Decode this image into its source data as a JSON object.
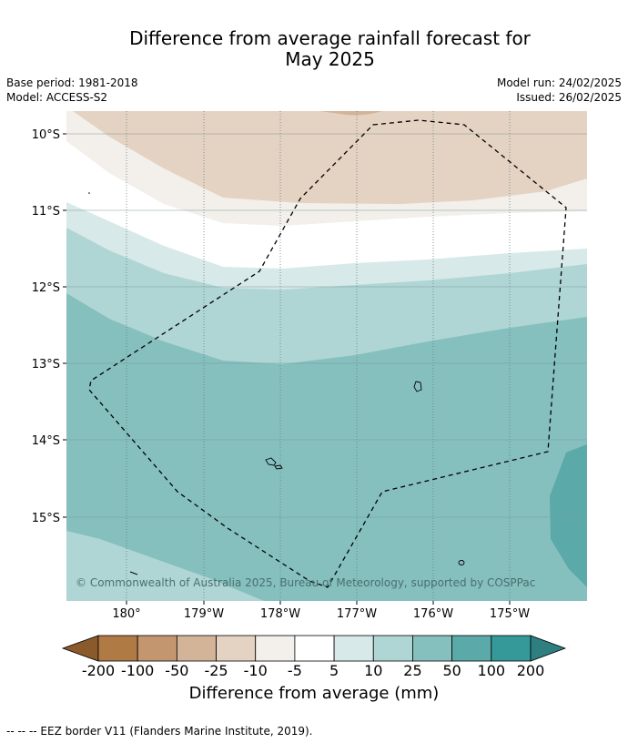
{
  "header": {
    "title_line1": "Difference from average rainfall forecast for",
    "title_line2": "May 2025",
    "base_period": "Base period: 1981-2018",
    "model": "Model: ACCESS-S2",
    "model_run": "Model run: 24/02/2025",
    "issued": "Issued: 26/02/2025"
  },
  "map": {
    "lat_labels": [
      "10°S",
      "11°S",
      "12°S",
      "13°S",
      "14°S",
      "15°S"
    ],
    "lon_labels": [
      "180°",
      "179°W",
      "178°W",
      "177°W",
      "176°W",
      "175°W"
    ],
    "copyright": "© Commonwealth of Australia 2025, Bureau of Meteorology, supported by COSPPac",
    "eez_border_style": "dashed",
    "islands": [
      "north-east islet",
      "central islands",
      "south-east islet",
      "south-west islet"
    ]
  },
  "colorbar": {
    "title": "Difference from average (mm)",
    "labels": [
      "-200",
      "-100",
      "-50",
      "-25",
      "-10",
      "-5",
      "5",
      "10",
      "25",
      "50",
      "100",
      "200"
    ],
    "colors": [
      "#8a5a2b",
      "#b07a44",
      "#c49670",
      "#d4b498",
      "#e4d3c3",
      "#f3efea",
      "#ffffff",
      "#d7e9e8",
      "#afd6d5",
      "#85c0bf",
      "#5ba9a8",
      "#35999a",
      "#2d7f80"
    ]
  },
  "footer": {
    "legend_text": "--  --  -- EEZ border V11 (Flanders Marine Institute, 2019)."
  }
}
